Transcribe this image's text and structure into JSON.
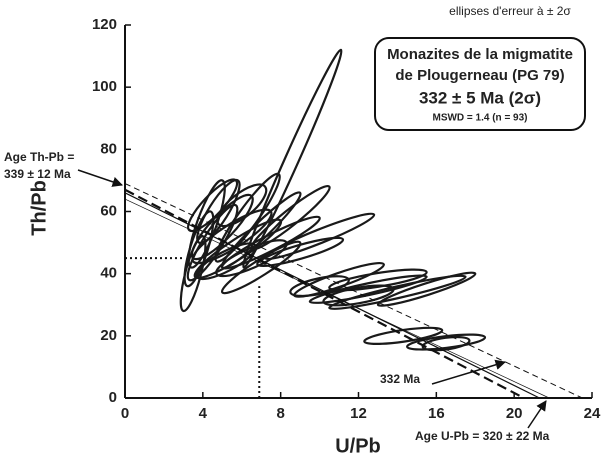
{
  "chart_data": {
    "type": "ellipses",
    "x_label": "U/Pb",
    "y_label": "Th/Pb",
    "xlim": [
      0,
      24
    ],
    "ylim": [
      0,
      120
    ],
    "xticks": [
      0,
      4,
      8,
      12,
      16,
      20,
      24
    ],
    "yticks": [
      0,
      20,
      40,
      60,
      80,
      100,
      120
    ],
    "color": "#1a1a1a",
    "ellipses": {
      "x": [
        8.6,
        6.3,
        5,
        4.5,
        5.5,
        4.2,
        6,
        5.8,
        3.8,
        7,
        4.8,
        7.5,
        9,
        5.2,
        3.5,
        8.5,
        6.5,
        10,
        11,
        12.5,
        14,
        13,
        12,
        10,
        15.5,
        14.3,
        16.5,
        16.5,
        7,
        4.5
      ],
      "y": [
        77,
        58,
        55,
        50,
        52,
        56,
        62,
        48,
        48,
        54,
        60,
        50,
        47,
        44,
        40,
        58,
        45,
        52,
        38,
        35,
        34,
        38,
        33,
        36,
        35,
        20,
        18,
        17.5,
        42,
        62
      ],
      "dx": [
        2.5,
        1.6,
        1.5,
        1.2,
        2,
        0.8,
        1.2,
        2.2,
        0.6,
        2,
        1,
        2.5,
        2.2,
        1.5,
        0.5,
        2,
        1.8,
        2.8,
        2.3,
        3,
        3.5,
        2.5,
        1.8,
        1.5,
        2.5,
        2,
        2,
        1.2,
        2,
        1.2
      ],
      "dy": [
        35,
        14,
        10,
        12,
        8,
        14,
        6,
        9,
        12,
        12,
        10,
        8,
        4,
        5,
        12,
        10,
        5,
        7,
        5,
        4,
        5,
        2.5,
        2,
        2,
        5,
        1.8,
        1.5,
        1,
        8,
        8
      ],
      "w": [
        0.35,
        0.5,
        0.6,
        0.5,
        0.6,
        0.5,
        0.6,
        0.5,
        0.45,
        0.4,
        0.5,
        0.4,
        0.35,
        0.5,
        0.4,
        0.4,
        0.5,
        0.35,
        0.35,
        0.3,
        0.3,
        0.35,
        0.4,
        0.4,
        0.3,
        0.3,
        0.3,
        0.3,
        0.4,
        0.5
      ]
    },
    "lines": [
      {
        "x": [
          0,
          23.5
        ],
        "y": [
          69,
          0
        ],
        "style": "dashed"
      },
      {
        "x": [
          0,
          20.5
        ],
        "y": [
          67,
          0
        ],
        "style": "bold-dashed"
      },
      {
        "x": [
          0,
          21.3
        ],
        "y": [
          66,
          0
        ],
        "style": "solid"
      },
      {
        "x": [
          0,
          21.8
        ],
        "y": [
          64,
          0
        ],
        "style": "thin"
      }
    ],
    "guides": [
      {
        "x": [
          0,
          3
        ],
        "y": [
          45,
          45
        ]
      },
      {
        "x": [
          6.9,
          6.9
        ],
        "y": [
          0,
          36
        ]
      }
    ],
    "note": "ellipses d'erreur à ± 2σ",
    "box": [
      "Monazites de la migmatite",
      "de Plougerneau (PG 79)",
      "332 ± 5 Ma (2σ)",
      "MSWD = 1.4 (n = 93)"
    ],
    "age_thpb": [
      "Age Th-Pb =",
      "339 ± 12 Ma"
    ],
    "age_label": "332 Ma",
    "age_upb": "Age U-Pb = 320 ± 22 Ma"
  }
}
